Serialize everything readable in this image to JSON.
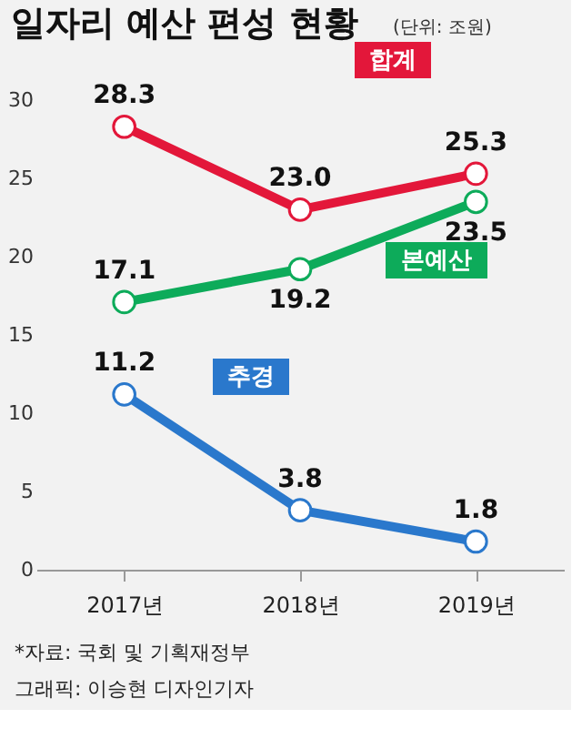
{
  "chart_data": {
    "type": "line",
    "title": "일자리 예산 편성 현황",
    "subtitle": "(단위: 조원)",
    "categories": [
      "2017년",
      "2018년",
      "2019년"
    ],
    "series": [
      {
        "name": "합계",
        "color": "#e3173a",
        "values": [
          28.3,
          23.0,
          25.3
        ],
        "value_labels": [
          "28.3",
          "23.0",
          "25.3"
        ]
      },
      {
        "name": "본예산",
        "color": "#0dab5a",
        "values": [
          17.1,
          19.2,
          23.5
        ],
        "value_labels": [
          "17.1",
          "19.2",
          "23.5"
        ]
      },
      {
        "name": "추경",
        "color": "#2a78cc",
        "values": [
          11.2,
          3.8,
          1.8
        ],
        "value_labels": [
          "11.2",
          "3.8",
          "1.8"
        ]
      }
    ],
    "ylim": [
      0,
      30
    ],
    "yticks": [
      0,
      5,
      10,
      15,
      20,
      25,
      30
    ],
    "grid": false,
    "legend": false,
    "marker": "circle",
    "line_style": "solid",
    "annotations": [
      "*자료: 국회 및 기획재정부",
      "그래픽: 이승현 디자인기자"
    ]
  }
}
